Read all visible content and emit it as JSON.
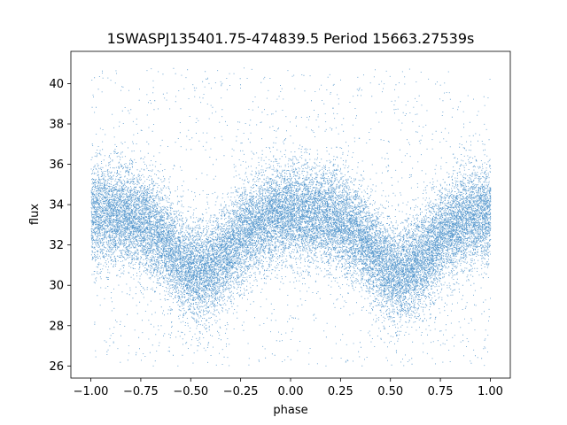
{
  "chart_data": {
    "type": "scatter",
    "title": "1SWASPJ135401.75-474839.5 Period 15663.27539s",
    "xlabel": "phase",
    "ylabel": "flux",
    "xlim": [
      -1.1,
      1.1
    ],
    "ylim": [
      25.4,
      41.6
    ],
    "xticks": [
      -1.0,
      -0.75,
      -0.5,
      -0.25,
      0.0,
      0.25,
      0.5,
      0.75,
      1.0
    ],
    "xtick_labels": [
      "−1.00",
      "−0.75",
      "−0.50",
      "−0.25",
      "0.00",
      "0.25",
      "0.50",
      "0.75",
      "1.00"
    ],
    "yticks": [
      26,
      28,
      30,
      32,
      34,
      36,
      38,
      40
    ],
    "ytick_labels": [
      "26",
      "28",
      "30",
      "32",
      "34",
      "36",
      "38",
      "40"
    ],
    "grid": false,
    "legend": "none",
    "series": [
      {
        "color": "#3a86c4",
        "marker": "point",
        "x_range": [
          -1.0,
          1.0
        ],
        "baseline_flux": 33.6,
        "flux_spread": 1.2,
        "outlier_flux_range": [
          26.0,
          40.8
        ],
        "dip_centers_phase": [
          -0.45,
          0.55
        ],
        "dip_min_flux": 30.6,
        "dip_halfwidth_phase": 0.22,
        "approx_points": 60000
      }
    ]
  },
  "colors": {
    "points": "#3a86c4",
    "axes": "#000000",
    "background": "#ffffff"
  }
}
